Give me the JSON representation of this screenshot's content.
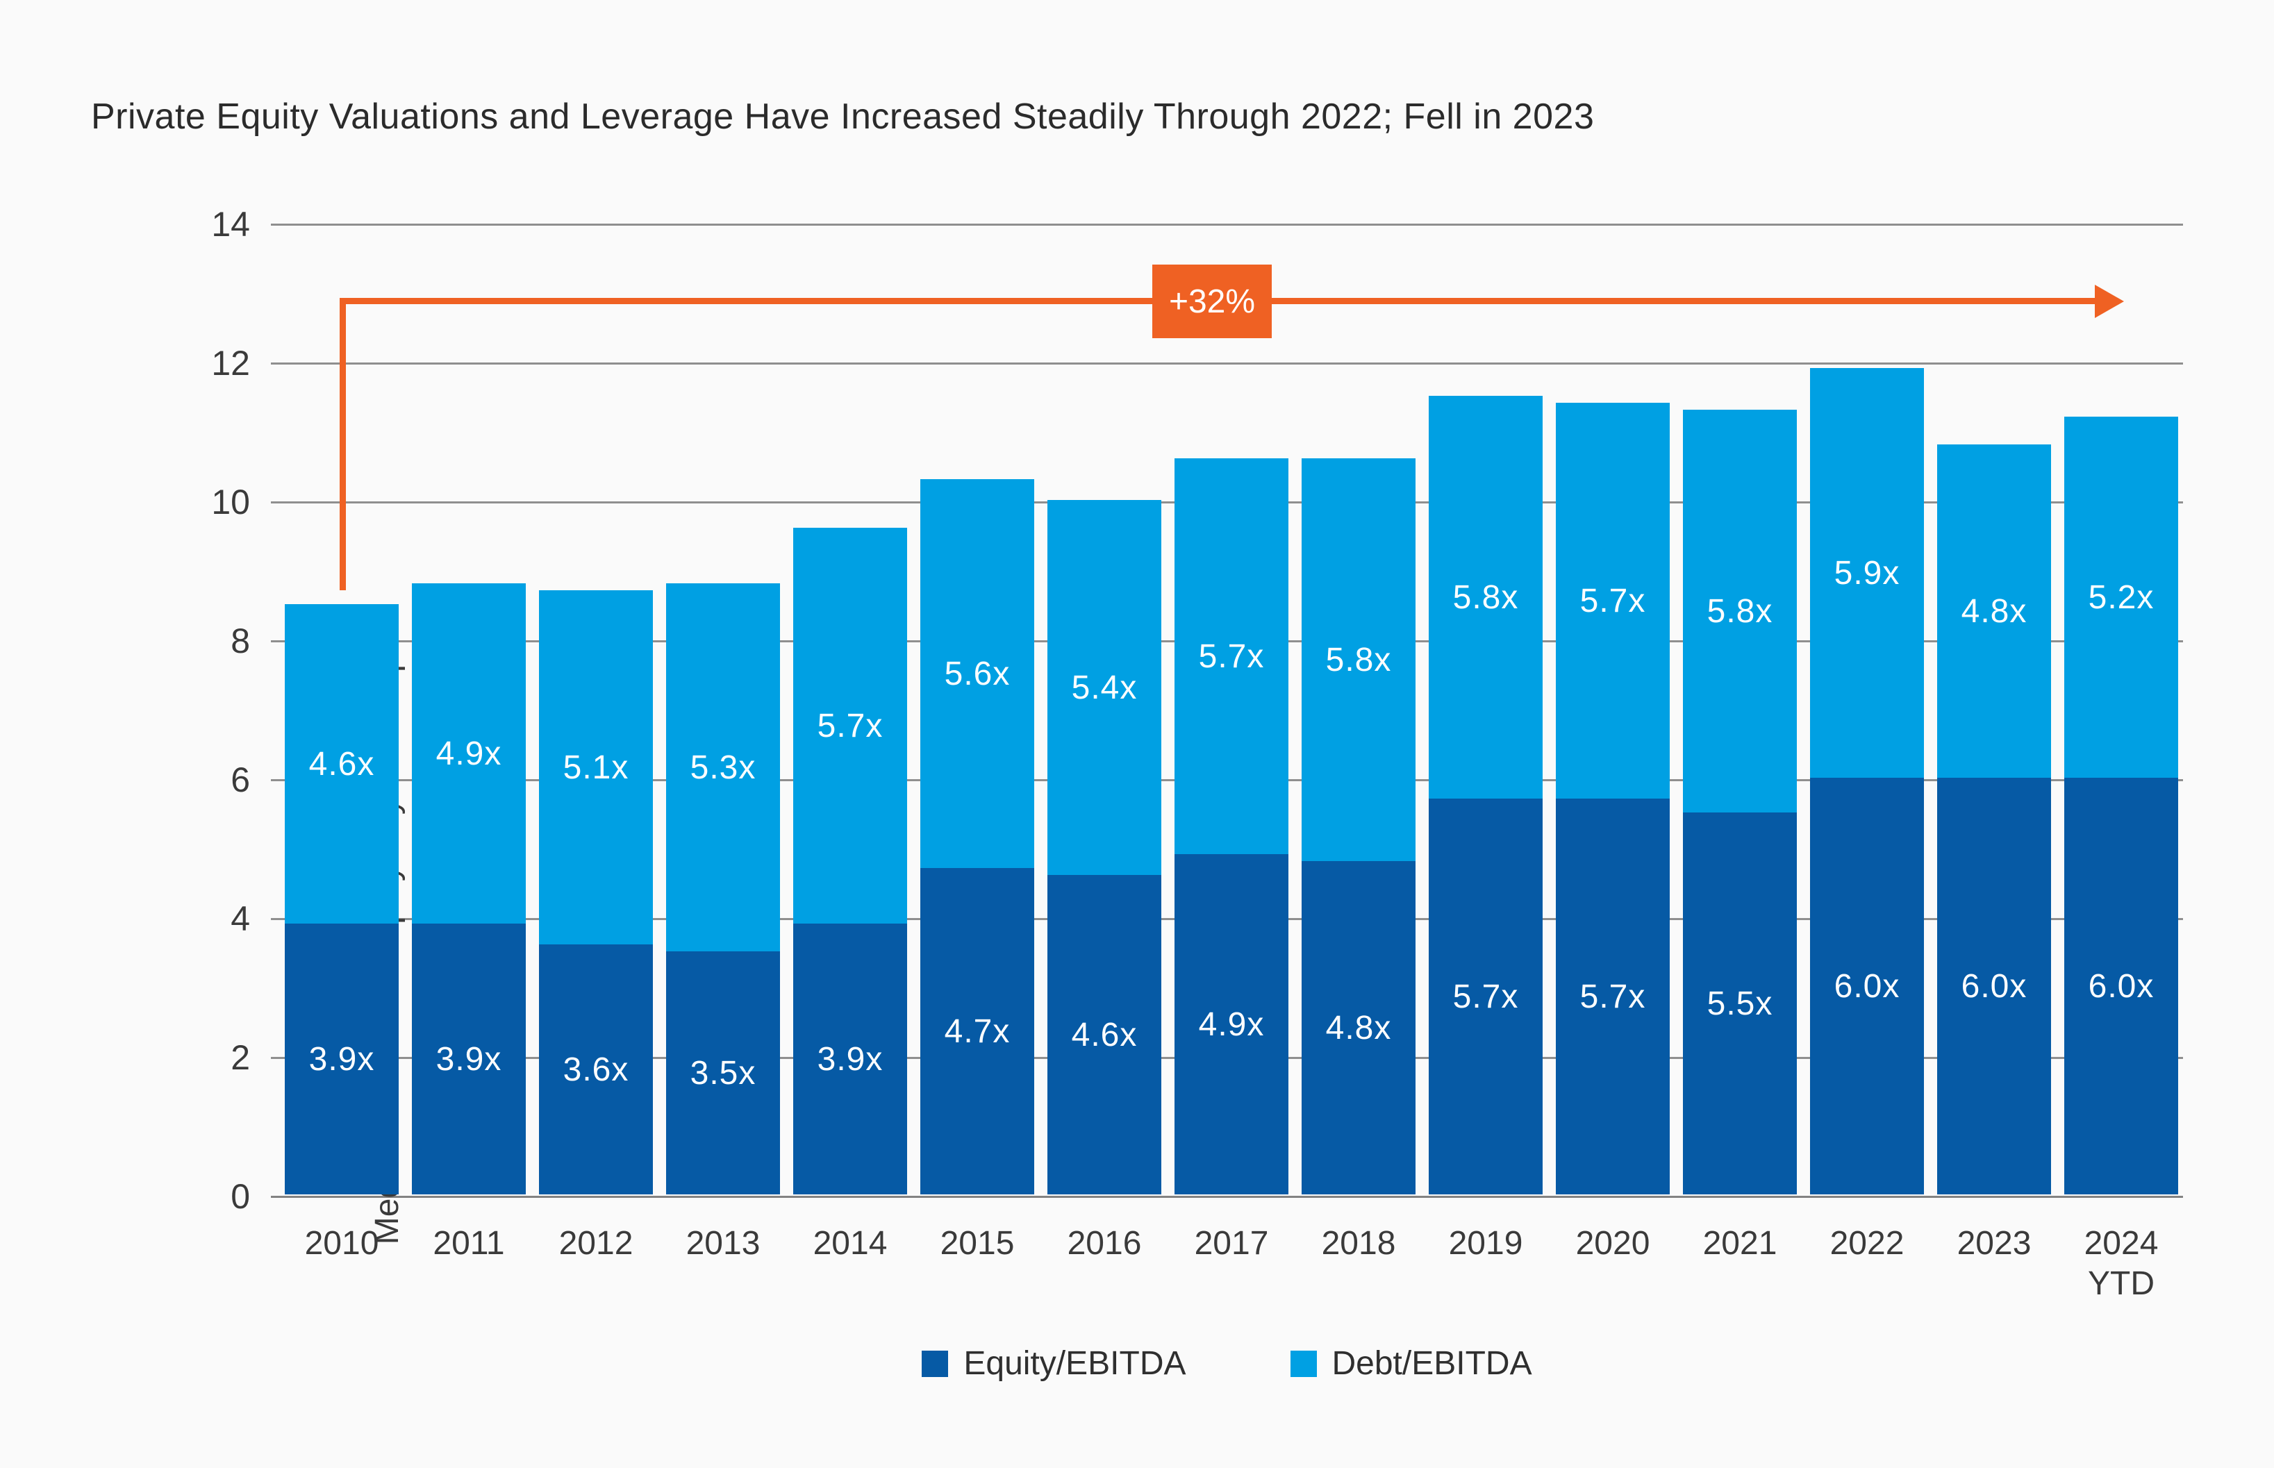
{
  "title": "Private Equity Valuations and Leverage Have Increased Steadily Through 2022; Fell in 2023",
  "y_axis": {
    "label_line1": "Median US Private Equity Buyout Multiple",
    "label_line2": "(Enterprise Value/EBITDA)",
    "ticks": [
      0,
      2,
      4,
      6,
      8,
      10,
      12,
      14
    ],
    "min": 0,
    "max": 14
  },
  "annotation": {
    "label": "+32%"
  },
  "legend": [
    {
      "name": "Equity/EBITDA",
      "color": "#065AA5"
    },
    {
      "name": "Debt/EBITDA",
      "color": "#00A0E3"
    }
  ],
  "colors": {
    "equity_blue": "#065AA5",
    "debt_blue": "#00A0E3",
    "accent_orange": "#EF6123",
    "gridline_gray": "#8f8f8f",
    "background": "#FAFAFA"
  },
  "chart_data": {
    "type": "bar",
    "stacked": true,
    "title": "Private Equity Valuations and Leverage Have Increased Steadily Through 2022; Fell in 2023",
    "xlabel": "",
    "ylabel": "Median US Private Equity Buyout Multiple (Enterprise Value/EBITDA)",
    "ylim": [
      0,
      14
    ],
    "grid": true,
    "legend_position": "bottom",
    "categories": [
      "2010",
      "2011",
      "2012",
      "2013",
      "2014",
      "2015",
      "2016",
      "2017",
      "2018",
      "2019",
      "2020",
      "2021",
      "2022",
      "2023",
      "2024 YTD"
    ],
    "x_display_labels": [
      "2010",
      "2011",
      "2012",
      "2013",
      "2014",
      "2015",
      "2016",
      "2017",
      "2018",
      "2019",
      "2020",
      "2021",
      "2022",
      "2023",
      "2024\nYTD"
    ],
    "series": [
      {
        "name": "Equity/EBITDA",
        "color": "#065AA5",
        "values": [
          3.9,
          3.9,
          3.6,
          3.5,
          3.9,
          4.7,
          4.6,
          4.9,
          4.8,
          5.7,
          5.7,
          5.5,
          6.0,
          6.0,
          6.0
        ],
        "labels": [
          "3.9x",
          "3.9x",
          "3.6x",
          "3.5x",
          "3.9x",
          "4.7x",
          "4.6x",
          "4.9x",
          "4.8x",
          "5.7x",
          "5.7x",
          "5.5x",
          "6.0x",
          "6.0x",
          "6.0x"
        ]
      },
      {
        "name": "Debt/EBITDA",
        "color": "#00A0E3",
        "values": [
          4.6,
          4.9,
          5.1,
          5.3,
          5.7,
          5.6,
          5.4,
          5.7,
          5.8,
          5.8,
          5.7,
          5.8,
          5.9,
          4.8,
          5.2
        ],
        "labels": [
          "4.6x",
          "4.9x",
          "5.1x",
          "5.3x",
          "5.7x",
          "5.6x",
          "5.4x",
          "5.7x",
          "5.8x",
          "5.8x",
          "5.7x",
          "5.8x",
          "5.9x",
          "4.8x",
          "5.2x"
        ]
      }
    ],
    "totals": [
      8.5,
      8.8,
      8.7,
      8.8,
      9.6,
      10.3,
      10.0,
      10.6,
      10.6,
      11.5,
      11.4,
      11.3,
      11.9,
      10.8,
      11.2
    ],
    "annotation_arrow": {
      "label": "+32%",
      "from_category": "2010",
      "to_category": "2024 YTD",
      "level": 12.9
    }
  }
}
